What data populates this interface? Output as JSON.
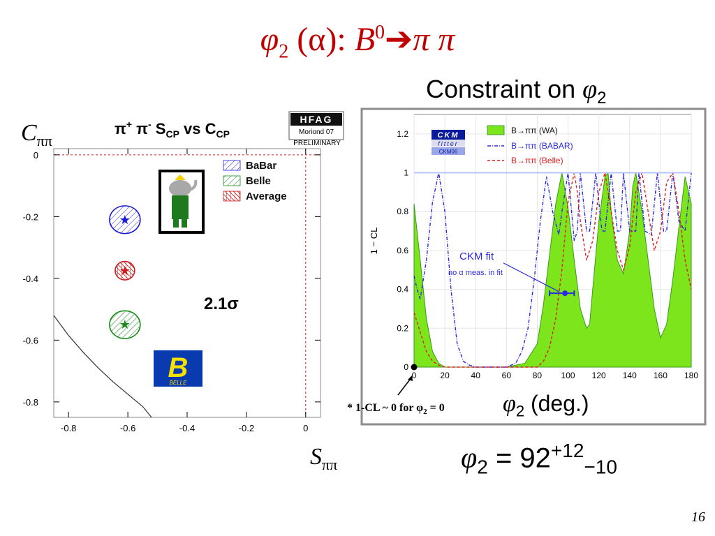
{
  "slide": {
    "title_phi": "φ",
    "title_sub": "2",
    "title_mid": " (α): ",
    "title_B": "B",
    "title_sup": "0",
    "title_arrow": "➔",
    "title_end": "π π",
    "constraint_text": "Constraint on ",
    "constraint_phi": "φ",
    "constraint_sub": "2",
    "c_axis_main": "C",
    "c_axis_sub": "ππ",
    "s_axis_main": "S",
    "s_axis_sub": "ππ",
    "deg_phi": "φ",
    "deg_sub": "2",
    "deg_text": " (deg.)",
    "result_phi": "φ",
    "result_sub": "2",
    "result_eq": " = 92",
    "result_sup": "+12",
    "result_low": "−10",
    "footnote_pre": "* 1-CL ~ 0 for φ",
    "footnote_sub": "2",
    "footnote_post": " = 0",
    "page_number": "16"
  },
  "hfag": {
    "logo": "HFAG",
    "line1": "Moriond 07",
    "line2": "PRELIMINARY"
  },
  "ckm_logo": {
    "word1": "CKM",
    "word2": "fitter",
    "word3": "CKM06"
  },
  "belle_logo": {
    "letter": "B",
    "word": "BELLE"
  },
  "colors": {
    "title_red": "#c00000",
    "babar_blue": "#1a1ad6",
    "belle_green": "#1a8a1a",
    "average_red": "#c81e1e",
    "wa_fill": "#7ce51c",
    "babar_line": "#2a2ae0",
    "belle_line": "#e01c1c",
    "frame_gray": "#8c8c8c"
  },
  "chart_data": [
    {
      "type": "scatter",
      "title": "π+ π- SCP vs CCP",
      "title_parts": {
        "a": "π",
        "a_sup": "+",
        "b": " π",
        "b_sup": "-",
        "c": " S",
        "c_sub": "CP",
        "d": " vs C",
        "d_sub": "CP"
      },
      "xlabel": "Sππ",
      "ylabel": "Cππ",
      "xlim": [
        -0.85,
        0.05
      ],
      "ylim": [
        -0.85,
        0.02
      ],
      "x_ticks": [
        "-0.8",
        "-0.6",
        "-0.4",
        "-0.2",
        "0"
      ],
      "y_ticks": [
        "0",
        "-0.2",
        "-0.4",
        "-0.6",
        "-0.8"
      ],
      "x_tick_values": [
        -0.8,
        -0.6,
        -0.4,
        -0.2,
        0
      ],
      "y_tick_values": [
        0,
        -0.2,
        -0.4,
        -0.6,
        -0.8
      ],
      "legend_position": "top-right",
      "series": [
        {
          "name": "BaBar",
          "color": "#1a1ad6",
          "x": -0.61,
          "y": -0.21,
          "sx": 0.11,
          "sy": 0.09
        },
        {
          "name": "Belle",
          "color": "#1a8a1a",
          "x": -0.61,
          "y": -0.55,
          "sx": 0.11,
          "sy": 0.09
        },
        {
          "name": "Average",
          "color": "#c81e1e",
          "x": -0.61,
          "y": -0.375,
          "sx": 0.07,
          "sy": 0.06
        }
      ],
      "physical_boundary": [
        [
          -0.85,
          -0.52
        ],
        [
          -0.8,
          -0.585
        ],
        [
          -0.75,
          -0.64
        ],
        [
          -0.7,
          -0.69
        ],
        [
          -0.65,
          -0.735
        ],
        [
          -0.6,
          -0.775
        ],
        [
          -0.55,
          -0.815
        ],
        [
          -0.52,
          -0.85
        ]
      ],
      "annotation": "2.1σ"
    },
    {
      "type": "area",
      "xlabel": "φ2 (deg.)",
      "ylabel": "1 − CL",
      "xlim": [
        0,
        180
      ],
      "ylim": [
        0,
        1.3
      ],
      "x_ticks": [
        "0",
        "20",
        "40",
        "60",
        "80",
        "100",
        "120",
        "140",
        "160",
        "180"
      ],
      "y_ticks": [
        "0",
        "0.2",
        "0.4",
        "0.6",
        "0.8",
        "1",
        "1.2"
      ],
      "x_tick_values": [
        0,
        20,
        40,
        60,
        80,
        100,
        120,
        140,
        160,
        180
      ],
      "y_tick_values": [
        0,
        0.2,
        0.4,
        0.6,
        0.8,
        1.0,
        1.2
      ],
      "legend_position": "top-right",
      "series": [
        {
          "name": "B→ππ (WA)",
          "style": "filled",
          "color": "#7ce51c",
          "x": [
            0,
            4,
            8,
            12,
            16,
            20,
            60,
            72,
            80,
            84,
            88,
            92,
            96,
            100,
            104,
            108,
            112,
            114,
            116,
            120,
            124,
            126,
            128,
            132,
            136,
            140,
            142,
            144,
            148,
            152,
            156,
            160,
            164,
            168,
            172,
            176,
            180
          ],
          "y": [
            0.84,
            0.55,
            0.25,
            0.08,
            0.02,
            0,
            0,
            0.02,
            0.12,
            0.32,
            0.58,
            0.84,
            1.0,
            0.82,
            0.55,
            0.3,
            0.2,
            0.22,
            0.4,
            0.75,
            0.98,
            1.0,
            0.8,
            0.55,
            0.48,
            0.7,
            0.93,
            1.0,
            0.8,
            0.55,
            0.3,
            0.15,
            0.22,
            0.45,
            0.72,
            0.98,
            0.84
          ]
        },
        {
          "name": "B→ππ (BABAR)",
          "style": "dash-dot",
          "color": "#2a2ae0",
          "x": [
            0,
            2,
            4,
            8,
            12,
            16,
            20,
            24,
            28,
            32,
            36,
            40,
            60,
            66,
            70,
            74,
            78,
            82,
            86,
            90,
            94,
            96,
            100,
            104,
            106,
            108,
            112,
            114,
            118,
            122,
            124,
            128,
            132,
            134,
            136,
            140,
            144,
            146,
            150,
            154,
            158,
            162,
            164,
            168,
            172,
            176,
            180
          ],
          "y": [
            0.47,
            0.4,
            0.35,
            0.55,
            0.85,
            1.0,
            0.8,
            0.4,
            0.12,
            0.03,
            0.01,
            0,
            0,
            0.02,
            0.08,
            0.2,
            0.45,
            0.75,
            0.98,
            0.8,
            0.68,
            0.8,
            1.0,
            0.65,
            0.7,
            1.0,
            0.7,
            0.7,
            1.0,
            0.7,
            0.7,
            1.0,
            0.7,
            0.7,
            1.0,
            0.7,
            0.7,
            1.0,
            0.7,
            0.68,
            1.0,
            0.7,
            0.7,
            1.0,
            0.75,
            0.7,
            1.0
          ]
        },
        {
          "name": "B→ππ (Belle)",
          "style": "dashed",
          "color": "#e01c1c",
          "x": [
            0,
            4,
            8,
            12,
            16,
            20,
            24,
            80,
            84,
            88,
            92,
            96,
            100,
            104,
            106,
            108,
            112,
            116,
            120,
            124,
            128,
            132,
            136,
            140,
            144,
            148,
            152,
            156,
            160,
            164,
            168,
            172,
            176,
            180
          ],
          "y": [
            0.28,
            0.18,
            0.08,
            0.03,
            0.01,
            0,
            0,
            0,
            0.03,
            0.1,
            0.25,
            0.5,
            0.85,
            1.0,
            0.9,
            0.75,
            0.55,
            0.65,
            0.9,
            1.0,
            0.8,
            0.6,
            0.5,
            0.62,
            0.9,
            1.0,
            0.8,
            0.6,
            0.7,
            0.95,
            1.0,
            0.8,
            0.55,
            0.4
          ]
        }
      ],
      "ckm_fit": {
        "label": "CKM fit",
        "sublabel": "no α meas. in fit",
        "value": 98,
        "low": 88,
        "high": 104,
        "y": 0.38
      },
      "legend_entries": [
        {
          "label": "B",
          "arrow": "→",
          "pp": "ππ",
          "tag": " (WA)"
        },
        {
          "label": "B",
          "arrow": "→",
          "pp": "ππ",
          "tag": " (BABAR)"
        },
        {
          "label": "B",
          "arrow": "→",
          "pp": "ππ",
          "tag": " (Belle)"
        }
      ]
    }
  ]
}
